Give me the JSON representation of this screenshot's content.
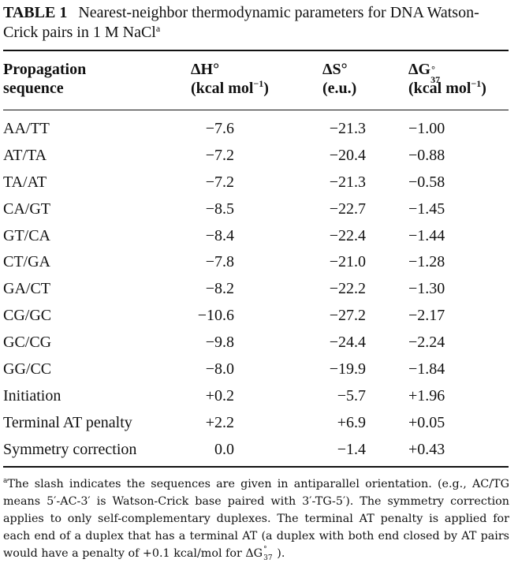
{
  "caption": {
    "label": "TABLE 1",
    "title": "Nearest-neighbor thermodynamic parameters for DNA Watson-Crick pairs in 1 M NaCl",
    "footnote_marker": "a"
  },
  "headers": {
    "col0_line1": "Propagation",
    "col0_line2": "sequence",
    "col1_symbol": "ΔH°",
    "col1_unit": "(kcal mol",
    "col1_unit_exp": "−1",
    "col1_unit_close": ")",
    "col2_symbol": "ΔS°",
    "col2_unit": "(e.u.)",
    "col3_symbol": "ΔG",
    "col3_degree": "°",
    "col3_subscript": "37",
    "col3_unit": "(kcal mol",
    "col3_unit_exp": "−1",
    "col3_unit_close": ")"
  },
  "rows": [
    {
      "seq": "AA/TT",
      "dH": "−7.6",
      "dS": "−21.3",
      "dG": "−1.00"
    },
    {
      "seq": "AT/TA",
      "dH": "−7.2",
      "dS": "−20.4",
      "dG": "−0.88"
    },
    {
      "seq": "TA/AT",
      "dH": "−7.2",
      "dS": "−21.3",
      "dG": "−0.58"
    },
    {
      "seq": "CA/GT",
      "dH": "−8.5",
      "dS": "−22.7",
      "dG": "−1.45"
    },
    {
      "seq": "GT/CA",
      "dH": "−8.4",
      "dS": "−22.4",
      "dG": "−1.44"
    },
    {
      "seq": "CT/GA",
      "dH": "−7.8",
      "dS": "−21.0",
      "dG": "−1.28"
    },
    {
      "seq": "GA/CT",
      "dH": "−8.2",
      "dS": "−22.2",
      "dG": "−1.30"
    },
    {
      "seq": "CG/GC",
      "dH": "−10.6",
      "dS": "−27.2",
      "dG": "−2.17"
    },
    {
      "seq": "GC/CG",
      "dH": "−9.8",
      "dS": "−24.4",
      "dG": "−2.24"
    },
    {
      "seq": "GG/CC",
      "dH": "−8.0",
      "dS": "−19.9",
      "dG": "−1.84"
    },
    {
      "seq": "Initiation",
      "dH": "+0.2",
      "dS": "−5.7",
      "dG": "+1.96"
    },
    {
      "seq": "Terminal AT penalty",
      "dH": "+2.2",
      "dS": "+6.9",
      "dG": "+0.05"
    },
    {
      "seq": "Symmetry correction",
      "dH": "0.0",
      "dS": "−1.4",
      "dG": "+0.43"
    }
  ],
  "footnote": {
    "marker": "a",
    "text": "The slash indicates the sequences are given in antiparallel orientation. (e.g., AC/TG means 5′-AC-3′ is Watson-Crick base paired with 3′-TG-5′). The symmetry correction applies to only self-complementary duplexes. The terminal AT penalty is applied for each end of a duplex that has a terminal AT (a duplex with both end closed by AT pairs would have a penalty of +0.1 kcal/mol for ",
    "symbol": "ΔG",
    "degree": "°",
    "subscript": "37",
    "tail": ")."
  }
}
